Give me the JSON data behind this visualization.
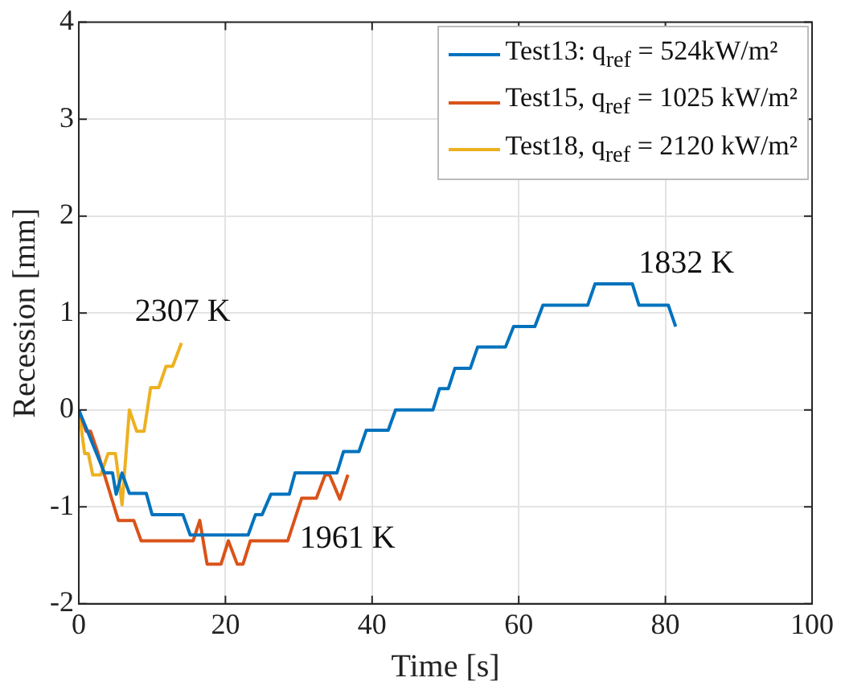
{
  "chart_data": {
    "type": "line",
    "xlabel": "Time [s]",
    "ylabel": "Recession [mm]",
    "xlim": [
      0,
      100
    ],
    "xticks": [
      0,
      20,
      40,
      60,
      80,
      100
    ],
    "ylim": [
      -2,
      4
    ],
    "yticks": [
      -2,
      -1,
      0,
      1,
      2,
      3,
      4
    ],
    "grid": true,
    "legend": "top right",
    "marker": "none",
    "line_style": "solid",
    "series": [
      {
        "name": "Test13: q$_{ref}$ = 524kW/m²",
        "color": "#0072bd",
        "x": [
          0,
          3.5,
          4.6,
          5.1,
          5.9,
          6.9,
          9.2,
          10,
          14.2,
          15.2,
          23.1,
          24.1,
          25,
          26.2,
          28.7,
          29.5,
          35.2,
          36.1,
          38.2,
          39.2,
          42.2,
          43.2,
          48.3,
          49.2,
          50.4,
          51.3,
          53.4,
          54.4,
          58.2,
          59.3,
          62.2,
          63.3,
          69.4,
          70.4,
          75.5,
          76.4,
          80.4,
          81.4
        ],
        "values": [
          0,
          -0.65,
          -0.65,
          -0.87,
          -0.65,
          -0.86,
          -0.86,
          -1.08,
          -1.08,
          -1.29,
          -1.29,
          -1.08,
          -1.08,
          -0.87,
          -0.87,
          -0.65,
          -0.65,
          -0.43,
          -0.43,
          -0.21,
          -0.21,
          0,
          0,
          0.22,
          0.22,
          0.43,
          0.43,
          0.65,
          0.65,
          0.86,
          0.86,
          1.08,
          1.08,
          1.3,
          1.3,
          1.08,
          1.08,
          0.86
        ]
      },
      {
        "name": "Test15, q$_{ref}$ = 1025 kW/m²",
        "color": "#d95319",
        "x": [
          0,
          1,
          1.6,
          2.6,
          3.5,
          5.4,
          7.5,
          8.5,
          15.6,
          16.5,
          17.5,
          19.4,
          20.4,
          21.6,
          22.4,
          23.4,
          28.5,
          30.4,
          32.4,
          33.6,
          34.2,
          35.6,
          36.7
        ],
        "values": [
          0,
          -0.22,
          -0.22,
          -0.44,
          -0.67,
          -1.14,
          -1.14,
          -1.35,
          -1.35,
          -1.14,
          -1.59,
          -1.59,
          -1.35,
          -1.59,
          -1.59,
          -1.35,
          -1.35,
          -0.91,
          -0.91,
          -0.67,
          -0.67,
          -0.92,
          -0.67
        ]
      },
      {
        "name": "Test18, q$_{ref}$ = 2120 kW/m²",
        "color": "#edb120",
        "x": [
          0,
          0.8,
          1.3,
          1.9,
          3,
          4,
          5,
          5.9,
          6.9,
          7.9,
          8.9,
          9.8,
          10.9,
          11.9,
          12.8,
          14
        ],
        "values": [
          0,
          -0.45,
          -0.45,
          -0.67,
          -0.67,
          -0.45,
          -0.45,
          -0.98,
          0,
          -0.22,
          -0.22,
          0.23,
          0.23,
          0.45,
          0.45,
          0.69
        ]
      }
    ],
    "annotations": [
      "2307 K",
      "1961 K",
      "1832 K"
    ]
  }
}
